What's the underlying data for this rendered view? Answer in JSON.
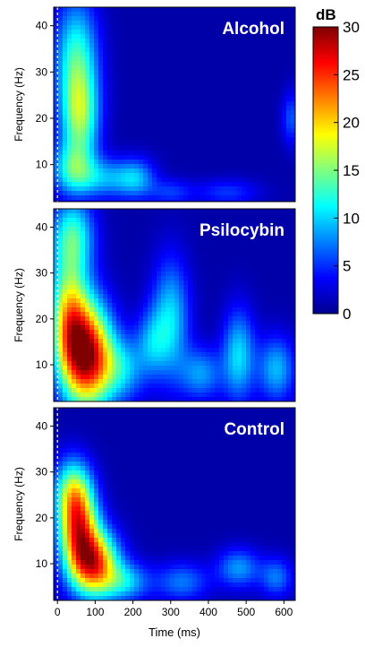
{
  "chart_data": {
    "type": "heatmap",
    "colorbar": {
      "label": "dB",
      "range": [
        0,
        30
      ],
      "ticks": [
        "0",
        "5",
        "10",
        "15",
        "20",
        "25",
        "30"
      ],
      "colormap": "jet"
    },
    "x_axis": {
      "label": "Time (ms)",
      "range": [
        -10,
        630
      ],
      "ticks": [
        "0",
        "100",
        "200",
        "300",
        "400",
        "500",
        "600"
      ],
      "stimulus_onset_ms": 0
    },
    "y_axis": {
      "label": "Frequency (Hz)",
      "range": [
        2,
        44
      ],
      "ticks": [
        "10",
        "20",
        "30",
        "40"
      ]
    },
    "panels": [
      {
        "title": "Alcohol",
        "blobs": [
          {
            "t": 50,
            "f": 33,
            "st": 40,
            "sf": 9,
            "db": 11
          },
          {
            "t": 60,
            "f": 20,
            "st": 35,
            "sf": 7,
            "db": 12
          },
          {
            "t": 40,
            "f": 9,
            "st": 40,
            "sf": 4,
            "db": 9
          },
          {
            "t": 130,
            "f": 7,
            "st": 60,
            "sf": 3,
            "db": 7
          },
          {
            "t": 210,
            "f": 7,
            "st": 35,
            "sf": 3,
            "db": 6
          },
          {
            "t": 300,
            "f": 4,
            "st": 40,
            "sf": 2,
            "db": 4
          },
          {
            "t": 450,
            "f": 4,
            "st": 60,
            "sf": 2,
            "db": 4
          },
          {
            "t": 620,
            "f": 20,
            "st": 18,
            "sf": 4,
            "db": 5
          }
        ]
      },
      {
        "title": "Psilocybin",
        "blobs": [
          {
            "t": 80,
            "f": 12,
            "st": 45,
            "sf": 8,
            "db": 26
          },
          {
            "t": 30,
            "f": 20,
            "st": 35,
            "sf": 9,
            "db": 16
          },
          {
            "t": 40,
            "f": 38,
            "st": 40,
            "sf": 6,
            "db": 11
          },
          {
            "t": 170,
            "f": 9,
            "st": 45,
            "sf": 5,
            "db": 8
          },
          {
            "t": 300,
            "f": 20,
            "st": 35,
            "sf": 9,
            "db": 9
          },
          {
            "t": 250,
            "f": 15,
            "st": 30,
            "sf": 5,
            "db": 6
          },
          {
            "t": 380,
            "f": 8,
            "st": 40,
            "sf": 4,
            "db": 7
          },
          {
            "t": 480,
            "f": 12,
            "st": 30,
            "sf": 7,
            "db": 9
          },
          {
            "t": 580,
            "f": 9,
            "st": 35,
            "sf": 5,
            "db": 8
          }
        ]
      },
      {
        "title": "Control",
        "blobs": [
          {
            "t": 95,
            "f": 10,
            "st": 45,
            "sf": 5,
            "db": 23
          },
          {
            "t": 55,
            "f": 18,
            "st": 35,
            "sf": 6,
            "db": 20
          },
          {
            "t": 40,
            "f": 26,
            "st": 35,
            "sf": 5,
            "db": 12
          },
          {
            "t": 180,
            "f": 6,
            "st": 45,
            "sf": 3,
            "db": 8
          },
          {
            "t": 330,
            "f": 6,
            "st": 50,
            "sf": 3,
            "db": 6
          },
          {
            "t": 480,
            "f": 9,
            "st": 40,
            "sf": 3,
            "db": 7
          },
          {
            "t": 580,
            "f": 7,
            "st": 30,
            "sf": 3,
            "db": 6
          }
        ]
      }
    ]
  }
}
